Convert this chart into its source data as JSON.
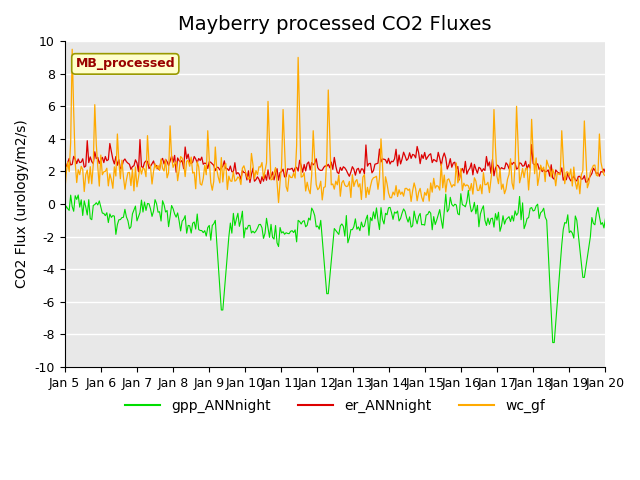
{
  "title": "Mayberry processed CO2 Fluxes",
  "ylabel": "CO2 Flux (urology/m2/s)",
  "xlabel": "",
  "ylim": [
    -10,
    10
  ],
  "yticks": [
    -10,
    -8,
    -6,
    -4,
    -2,
    0,
    2,
    4,
    6,
    8,
    10
  ],
  "date_labels": [
    "Jan 5",
    "Jan 6",
    "Jan 7",
    "Jan 8",
    "Jan 9",
    "Jan 10",
    "Jan 11",
    "Jan 12",
    "Jan 13",
    "Jan 14",
    "Jan 15",
    "Jan 16",
    "Jan 17",
    "Jan 18",
    "Jan 19",
    "Jan 20"
  ],
  "n_points": 360,
  "color_gpp": "#00dd00",
  "color_er": "#dd0000",
  "color_wc": "#ffaa00",
  "legend_label": "MB_processed",
  "legend_entries": [
    "gpp_ANNnight",
    "er_ANNnight",
    "wc_gf"
  ],
  "bg_color": "#e8e8e8",
  "title_fontsize": 14,
  "axis_fontsize": 10,
  "tick_fontsize": 9
}
